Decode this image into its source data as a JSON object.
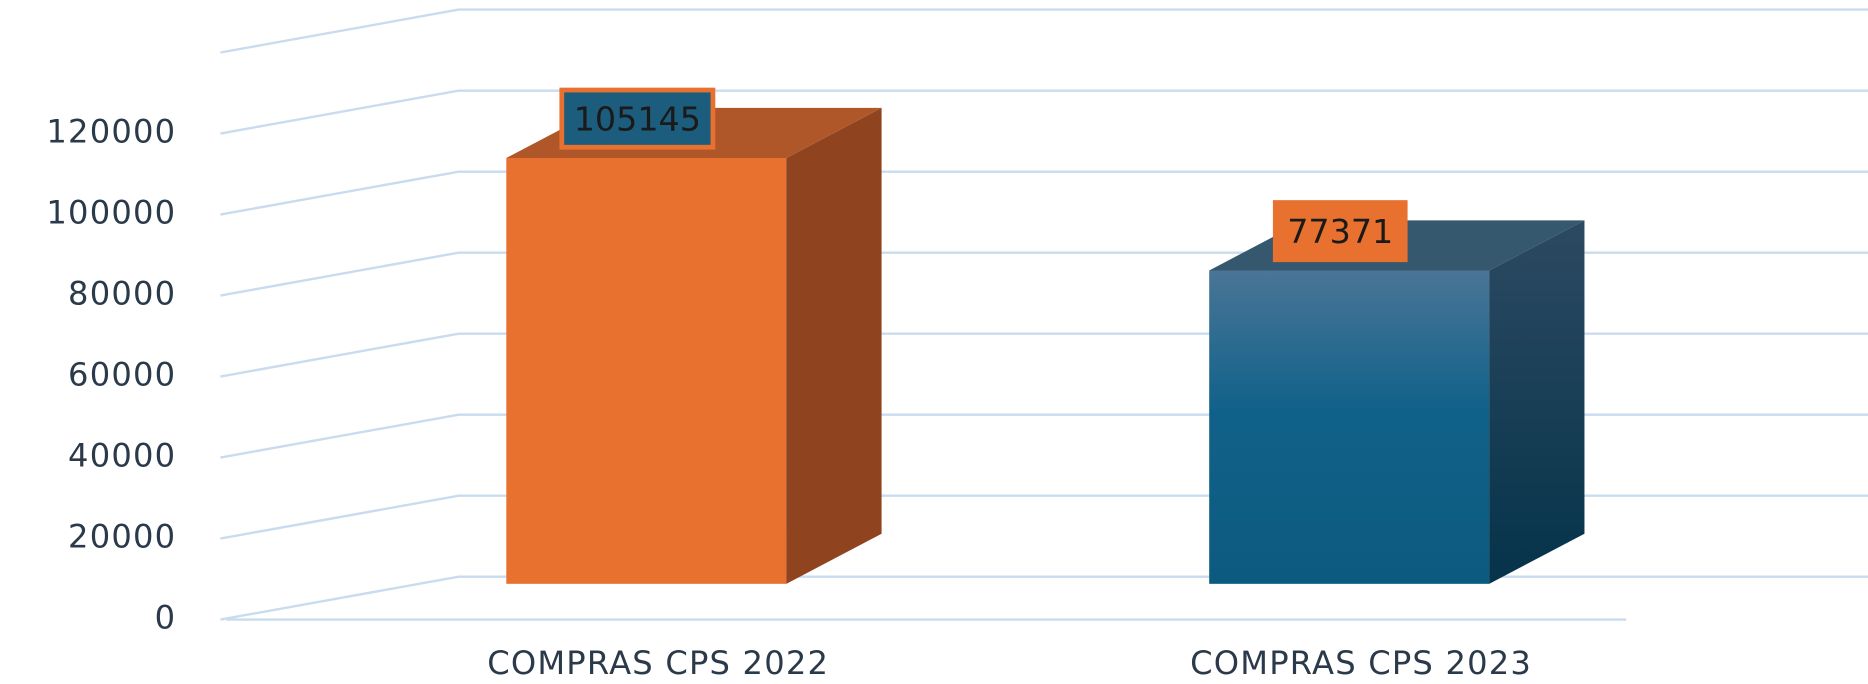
{
  "chart_data": {
    "type": "bar3d",
    "categories": [
      "COMPRAS CPS 2022",
      "COMPRAS CPS 2023"
    ],
    "values": [
      105145,
      77371
    ],
    "colors": [
      "#e8712f",
      "#1a6489"
    ],
    "ylim": [
      0,
      140000
    ],
    "yticks": [
      0,
      20000,
      40000,
      60000,
      80000,
      100000,
      120000
    ],
    "grid": true
  }
}
